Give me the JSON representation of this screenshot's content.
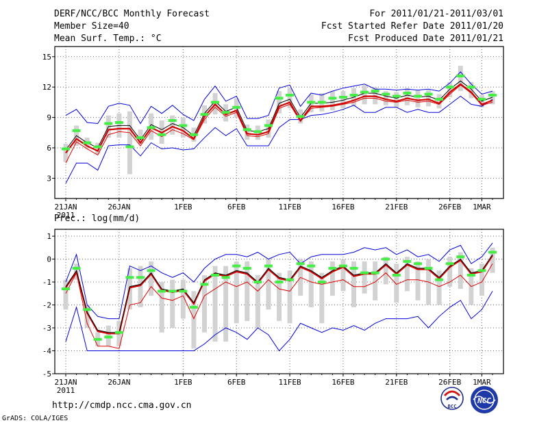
{
  "header": {
    "left": [
      "DERF/NCC/BCC Monthly Forecast",
      "Member Size=40",
      "Mean Surf. Temp.: °C"
    ],
    "right": [
      "For 2011/01/21-2011/03/01",
      "Fcst Started Refer Date 2011/01/20",
      "Fcst Produced Date 2011/01/21"
    ]
  },
  "footer": {
    "url": "http://cmdp.ncc.cma.gov.cn",
    "credit": "GrADS: COLA/IGES",
    "logo_bcc": "BCC",
    "logo_ncc": "NCC"
  },
  "colors": {
    "envelope": "#0000dd",
    "mean": "#000000",
    "mean_shadow": "#d00000",
    "lower_band": "#dd0000",
    "observed": "#44ee44",
    "spread_box": "#d2d2d2"
  },
  "chart_data": [
    {
      "type": "line",
      "title": "Mean Surf. Temp.: °C",
      "xlabel": "",
      "ylabel": "",
      "x_tick_labels": [
        "21JAN",
        "26JAN",
        "1FEB",
        "6FEB",
        "11FEB",
        "16FEB",
        "21FEB",
        "26FEB",
        "1MAR"
      ],
      "x_tick_days": [
        0,
        5,
        11,
        16,
        21,
        26,
        31,
        36,
        39
      ],
      "x_year_label": "2011",
      "ylim": [
        1,
        16
      ],
      "yticks": [
        3,
        6,
        9,
        12,
        15
      ],
      "grid": true,
      "series": [
        {
          "name": "ensemble max",
          "values": [
            9.2,
            9.8,
            8.5,
            8.4,
            10.1,
            10.4,
            10.2,
            8.4,
            10.1,
            9.4,
            10.2,
            9.3,
            8.7,
            10.8,
            12.1,
            10.6,
            11.1,
            8.9,
            8.9,
            9.2,
            11.9,
            12.2,
            10.1,
            11.4,
            11.2,
            11.6,
            11.9,
            12.1,
            12.3,
            11.8,
            11.8,
            11.7,
            11.8,
            11.7,
            11.8,
            11.6,
            12.4,
            13.5,
            12.3,
            11.3,
            11.6
          ]
        },
        {
          "name": "ensemble mean",
          "values": [
            5.8,
            7.2,
            6.5,
            6.0,
            8.1,
            8.2,
            8.2,
            6.8,
            8.3,
            7.8,
            8.4,
            8.0,
            7.2,
            9.4,
            10.6,
            9.6,
            10.0,
            7.7,
            7.6,
            7.9,
            10.4,
            10.8,
            9.0,
            10.4,
            10.4,
            10.5,
            10.7,
            11.0,
            11.4,
            11.4,
            11.1,
            10.9,
            11.2,
            11.0,
            11.1,
            10.7,
            11.8,
            12.6,
            11.8,
            10.6,
            11.0
          ]
        },
        {
          "name": "mean shadow",
          "values": [
            5.6,
            7.0,
            6.3,
            5.8,
            7.9,
            8.0,
            8.0,
            6.6,
            8.1,
            7.6,
            8.2,
            7.8,
            7.0,
            9.2,
            10.4,
            9.4,
            9.8,
            7.5,
            7.4,
            7.7,
            10.2,
            10.6,
            8.8,
            10.2,
            10.2,
            10.3,
            10.5,
            10.8,
            11.2,
            11.2,
            10.9,
            10.7,
            11.0,
            10.8,
            10.9,
            10.5,
            11.6,
            12.4,
            11.6,
            10.4,
            10.8
          ]
        },
        {
          "name": "lower band",
          "values": [
            4.5,
            6.6,
            5.9,
            5.3,
            7.3,
            7.6,
            7.5,
            6.2,
            7.7,
            7.1,
            7.8,
            7.4,
            6.8,
            8.8,
            10.0,
            9.1,
            9.5,
            7.2,
            7.1,
            7.4,
            9.9,
            10.3,
            8.6,
            9.9,
            10.0,
            10.1,
            10.3,
            10.5,
            10.9,
            10.9,
            10.6,
            10.5,
            10.7,
            10.5,
            10.6,
            10.3,
            11.3,
            12.2,
            11.4,
            10.2,
            10.5
          ]
        },
        {
          "name": "ensemble min",
          "values": [
            2.5,
            4.5,
            4.5,
            3.8,
            6.2,
            6.3,
            6.3,
            5.2,
            6.5,
            5.9,
            6.0,
            5.8,
            5.9,
            7.0,
            8.0,
            7.2,
            7.9,
            6.2,
            6.2,
            6.2,
            8.0,
            8.8,
            8.8,
            9.2,
            9.3,
            9.5,
            9.8,
            10.2,
            9.5,
            9.5,
            10.0,
            10.0,
            9.5,
            9.8,
            9.5,
            9.5,
            10.3,
            11.1,
            10.3,
            10.1,
            10.8
          ]
        },
        {
          "name": "observed",
          "values": [
            5.9,
            7.7,
            6.5,
            6.1,
            8.4,
            8.5,
            6.1,
            7.0,
            8.0,
            7.3,
            8.7,
            8.2,
            7.3,
            9.3,
            10.5,
            9.5,
            10.0,
            7.8,
            7.6,
            8.2,
            10.9,
            11.2,
            9.1,
            10.5,
            10.5,
            10.9,
            11.0,
            11.2,
            11.5,
            11.6,
            11.3,
            11.1,
            11.4,
            11.1,
            11.3,
            10.8,
            12.0,
            13.1,
            12.0,
            10.8,
            11.2
          ]
        },
        {
          "name": "spread low",
          "values": [
            4.6,
            6.2,
            5.9,
            5.4,
            7.0,
            7.0,
            3.4,
            6.4,
            6.8,
            6.4,
            7.3,
            7.0,
            6.6,
            8.4,
            9.3,
            8.6,
            9.0,
            6.8,
            6.8,
            7.0,
            9.4,
            9.9,
            8.4,
            9.5,
            9.6,
            9.7,
            9.9,
            10.1,
            10.3,
            10.3,
            10.2,
            10.0,
            10.2,
            10.0,
            10.1,
            9.9,
            11.0,
            11.6,
            10.9,
            10.0,
            10.3
          ]
        },
        {
          "name": "spread high",
          "values": [
            6.4,
            8.2,
            7.0,
            6.5,
            9.2,
            9.4,
            9.6,
            7.8,
            9.4,
            8.7,
            9.2,
            9.0,
            8.0,
            10.2,
            11.4,
            10.3,
            10.9,
            8.3,
            8.2,
            8.8,
            11.6,
            11.9,
            9.8,
            11.3,
            11.4,
            11.6,
            11.6,
            11.9,
            12.2,
            12.0,
            11.6,
            11.5,
            11.9,
            11.7,
            11.7,
            11.3,
            12.5,
            14.1,
            12.5,
            11.2,
            11.6
          ]
        }
      ]
    },
    {
      "type": "line",
      "title": "Prec.: log(mm/d)",
      "xlabel": "",
      "ylabel": "",
      "x_tick_labels": [
        "21JAN",
        "26JAN",
        "1FEB",
        "6FEB",
        "11FEB",
        "16FEB",
        "21FEB",
        "26FEB",
        "1MAR"
      ],
      "x_tick_days": [
        0,
        5,
        11,
        16,
        21,
        26,
        31,
        36,
        39
      ],
      "x_year_label": "2011",
      "ylim": [
        -5,
        1.3
      ],
      "yticks": [
        -5,
        -4,
        -3,
        -2,
        -1,
        0,
        1
      ],
      "grid": true,
      "series": [
        {
          "name": "ensemble max",
          "values": [
            -1.0,
            0.2,
            -2.0,
            -2.5,
            -2.6,
            -2.6,
            -0.3,
            -0.5,
            -0.3,
            -0.6,
            -0.8,
            -0.6,
            -1.0,
            -0.4,
            0.0,
            0.2,
            0.2,
            0.1,
            0.3,
            0.0,
            0.2,
            0.3,
            -0.2,
            0.1,
            0.2,
            0.2,
            0.2,
            0.3,
            0.5,
            0.4,
            0.5,
            0.2,
            0.4,
            0.1,
            0.2,
            -0.1,
            0.4,
            0.6,
            -0.2,
            0.1,
            0.7
          ]
        },
        {
          "name": "ensemble mean",
          "values": [
            -1.2,
            -0.5,
            -2.3,
            -3.1,
            -3.2,
            -3.2,
            -1.2,
            -1.1,
            -0.6,
            -1.3,
            -1.4,
            -1.3,
            -1.9,
            -0.9,
            -0.6,
            -0.7,
            -0.5,
            -0.6,
            -1.0,
            -0.4,
            -0.8,
            -0.9,
            -0.3,
            -0.5,
            -0.8,
            -0.5,
            -0.3,
            -0.7,
            -0.6,
            -0.6,
            -0.2,
            -0.6,
            -0.2,
            -0.4,
            -0.4,
            -0.8,
            -0.3,
            0.0,
            -0.6,
            -0.5,
            0.2
          ]
        },
        {
          "name": "mean shadow",
          "values": [
            -1.2,
            -0.5,
            -2.3,
            -3.1,
            -3.2,
            -3.2,
            -1.2,
            -1.1,
            -0.6,
            -1.3,
            -1.4,
            -1.3,
            -1.9,
            -0.9,
            -0.6,
            -0.7,
            -0.5,
            -0.6,
            -1.0,
            -0.4,
            -0.8,
            -0.9,
            -0.3,
            -0.5,
            -0.8,
            -0.5,
            -0.3,
            -0.7,
            -0.6,
            -0.6,
            -0.2,
            -0.6,
            -0.2,
            -0.4,
            -0.4,
            -0.8,
            -0.3,
            0.0,
            -0.6,
            -0.5,
            0.2
          ]
        },
        {
          "name": "lower band",
          "values": [
            -1.5,
            -0.6,
            -2.8,
            -3.8,
            -3.8,
            -3.9,
            -2.0,
            -1.9,
            -1.2,
            -1.7,
            -1.8,
            -1.6,
            -2.6,
            -1.6,
            -1.3,
            -1.0,
            -1.2,
            -1.0,
            -1.4,
            -0.9,
            -1.3,
            -1.4,
            -0.8,
            -1.0,
            -1.1,
            -1.0,
            -0.9,
            -1.2,
            -1.2,
            -1.0,
            -0.6,
            -1.1,
            -0.9,
            -0.9,
            -1.0,
            -1.2,
            -1.0,
            -0.7,
            -1.2,
            -1.0,
            -0.2
          ]
        },
        {
          "name": "ensemble min",
          "values": [
            -3.6,
            -2.1,
            -4.0,
            -4.0,
            -4.0,
            -4.0,
            -4.0,
            -4.0,
            -4.0,
            -4.0,
            -4.0,
            -4.0,
            -4.0,
            -3.7,
            -3.3,
            -3.0,
            -3.2,
            -3.5,
            -3.0,
            -3.3,
            -4.0,
            -3.5,
            -2.8,
            -3.0,
            -3.2,
            -3.0,
            -3.1,
            -2.9,
            -3.1,
            -2.8,
            -2.6,
            -2.6,
            -2.6,
            -2.5,
            -3.0,
            -2.5,
            -2.1,
            -1.8,
            -2.6,
            -2.2,
            -1.4
          ]
        },
        {
          "name": "observed",
          "values": [
            -1.3,
            -0.4,
            -2.2,
            -3.5,
            -3.4,
            -3.2,
            -0.8,
            -0.8,
            -0.5,
            -1.4,
            -1.4,
            -1.4,
            -2.1,
            -1.1,
            -0.7,
            -0.8,
            -0.3,
            -0.4,
            -1.0,
            -0.3,
            -1.0,
            -0.9,
            -0.2,
            -0.3,
            -1.0,
            -0.4,
            -0.3,
            -0.4,
            -0.6,
            -0.6,
            0.0,
            -0.7,
            -0.1,
            -0.2,
            -0.4,
            -0.9,
            -0.2,
            0.1,
            -0.7,
            -0.5,
            0.3
          ]
        },
        {
          "name": "spread low",
          "values": [
            -2.2,
            -0.9,
            -3.0,
            -3.8,
            -3.8,
            -3.8,
            -2.2,
            -2.1,
            -1.6,
            -3.2,
            -3.0,
            -2.6,
            -3.9,
            -3.2,
            -3.6,
            -3.6,
            -2.8,
            -2.7,
            -3.0,
            -2.2,
            -2.7,
            -2.8,
            -1.6,
            -2.1,
            -2.8,
            -1.6,
            -1.4,
            -2.1,
            -1.5,
            -1.8,
            -1.1,
            -1.9,
            -1.4,
            -1.8,
            -2.0,
            -2.0,
            -1.2,
            -1.3,
            -2.0,
            -1.6,
            -0.6
          ]
        },
        {
          "name": "spread high",
          "values": [
            -0.9,
            -0.2,
            -2.0,
            -3.2,
            -2.9,
            -2.7,
            -0.4,
            -0.3,
            -0.1,
            -1.0,
            -0.9,
            -0.9,
            -1.4,
            -0.7,
            -0.3,
            -0.3,
            -0.1,
            -0.1,
            -0.7,
            0.0,
            -0.6,
            -0.5,
            0.0,
            -0.1,
            -0.6,
            -0.1,
            0.0,
            -0.1,
            -0.1,
            -0.1,
            0.1,
            -0.2,
            0.1,
            -0.1,
            0.0,
            -0.5,
            0.1,
            0.3,
            -0.4,
            -0.2,
            0.5
          ]
        }
      ]
    }
  ]
}
